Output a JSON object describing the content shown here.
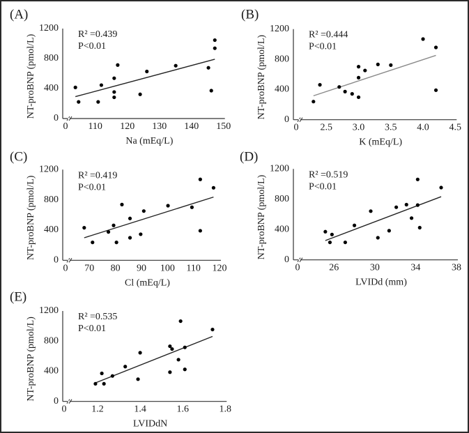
{
  "figure": {
    "panels_count": 5
  },
  "chart_data": [
    {
      "id": "A",
      "type": "scatter",
      "panel_label": "(A)",
      "title": "",
      "xlabel": "Na (mEq/L)",
      "ylabel": "NT-proBNP (pmol/L)",
      "x_break": true,
      "xticks": [
        0,
        110,
        120,
        130,
        140,
        150
      ],
      "xtick_labels": [
        "0",
        "110",
        "120",
        "130",
        "140",
        "150"
      ],
      "xlim": [
        110,
        150
      ],
      "yticks": [
        0,
        400,
        800,
        1200
      ],
      "ylim": [
        0,
        1200
      ],
      "annotation": {
        "r2": "R² =0.439",
        "p": "P<0.01"
      },
      "points": [
        [
          103.8,
          415
        ],
        [
          104.8,
          222
        ],
        [
          110.9,
          222
        ],
        [
          111.9,
          446
        ],
        [
          115.9,
          283
        ],
        [
          115.9,
          354
        ],
        [
          115.9,
          538
        ],
        [
          117.0,
          714
        ],
        [
          124.0,
          323
        ],
        [
          126.1,
          628
        ],
        [
          135.1,
          705
        ],
        [
          145.3,
          677
        ],
        [
          146.2,
          372
        ],
        [
          147.3,
          938
        ],
        [
          147.3,
          1046
        ]
      ],
      "fit_line": [
        [
          103.8,
          292
        ],
        [
          147.3,
          791
        ]
      ],
      "line_color": "#222222"
    },
    {
      "id": "B",
      "type": "scatter",
      "panel_label": "(B)",
      "title": "",
      "xlabel": "K (mEq/L)",
      "ylabel": "NT-proBNP (pmol/L)",
      "x_break": true,
      "xticks": [
        0,
        2.5,
        3.0,
        3.5,
        4.0,
        4.5
      ],
      "xtick_labels": [
        "0",
        "2.5",
        "3.0",
        "3.5",
        "4.0",
        "4.5"
      ],
      "xlim": [
        2.5,
        4.5
      ],
      "yticks": [
        0,
        400,
        800,
        1200
      ],
      "ylim": [
        0,
        1200
      ],
      "annotation": {
        "r2": "R² =0.444",
        "p": "P<0.01"
      },
      "points": [
        [
          2.3,
          240
        ],
        [
          2.4,
          462
        ],
        [
          2.7,
          434
        ],
        [
          2.79,
          372
        ],
        [
          2.9,
          342
        ],
        [
          3.0,
          298
        ],
        [
          3.0,
          557
        ],
        [
          3.0,
          702
        ],
        [
          3.1,
          652
        ],
        [
          3.3,
          732
        ],
        [
          3.5,
          723
        ],
        [
          4.0,
          1068
        ],
        [
          4.2,
          957
        ],
        [
          4.2,
          391
        ]
      ],
      "fit_line": [
        [
          2.3,
          317
        ],
        [
          4.2,
          852
        ]
      ],
      "line_color": "#8a8a8a"
    },
    {
      "id": "C",
      "type": "scatter",
      "panel_label": "(C)",
      "title": "",
      "xlabel": "Cl (mEq/L)",
      "ylabel": "NT-proBNP (pmol/L)",
      "x_break": true,
      "xticks": [
        0,
        70,
        80,
        90,
        100,
        110,
        120
      ],
      "xtick_labels": [
        "0",
        "70",
        "80",
        "90",
        "100",
        "110",
        "120"
      ],
      "xlim": [
        70,
        120
      ],
      "yticks": [
        0,
        400,
        800,
        1200
      ],
      "ylim": [
        0,
        1200
      ],
      "annotation": {
        "r2": "R² =0.419",
        "p": "P<0.01"
      },
      "points": [
        [
          68.0,
          431
        ],
        [
          71.2,
          237
        ],
        [
          77.3,
          375
        ],
        [
          79.3,
          462
        ],
        [
          80.4,
          237
        ],
        [
          82.5,
          738
        ],
        [
          85.6,
          554
        ],
        [
          85.6,
          298
        ],
        [
          89.7,
          345
        ],
        [
          90.9,
          652
        ],
        [
          100.2,
          723
        ],
        [
          109.4,
          702
        ],
        [
          112.6,
          1071
        ],
        [
          112.6,
          391
        ],
        [
          117.7,
          960
        ]
      ],
      "fit_line": [
        [
          68.0,
          298
        ],
        [
          117.7,
          837
        ]
      ],
      "line_color": "#222222"
    },
    {
      "id": "D",
      "type": "scatter",
      "panel_label": "(D)",
      "title": "",
      "xlabel": "LVIDd (mm)",
      "ylabel": "NT-proBNP (pmol/L)",
      "x_break": true,
      "xticks": [
        0,
        26,
        30,
        34,
        38
      ],
      "xtick_labels": [
        "0",
        "26",
        "30",
        "34",
        "38"
      ],
      "xlim": [
        26,
        38
      ],
      "yticks": [
        0,
        400,
        800,
        1200
      ],
      "ylim": [
        0,
        1200
      ],
      "annotation": {
        "r2": "R² =0.519",
        "p": "P<0.01"
      },
      "points": [
        [
          25.15,
          372
        ],
        [
          25.8,
          335
        ],
        [
          25.6,
          231
        ],
        [
          27.1,
          231
        ],
        [
          28.0,
          455
        ],
        [
          29.6,
          643
        ],
        [
          30.3,
          292
        ],
        [
          31.4,
          385
        ],
        [
          32.1,
          695
        ],
        [
          33.1,
          729
        ],
        [
          33.6,
          551
        ],
        [
          34.2,
          723
        ],
        [
          34.2,
          1062
        ],
        [
          34.4,
          425
        ],
        [
          36.5,
          954
        ]
      ],
      "fit_line": [
        [
          25.15,
          255
        ],
        [
          36.5,
          834
        ]
      ],
      "line_color": "#222222"
    },
    {
      "id": "E",
      "type": "scatter",
      "panel_label": "(E)",
      "title": "",
      "xlabel": "LVIDdN",
      "ylabel": "NT-proBNP (pmol/L)",
      "x_break": true,
      "xticks": [
        0,
        1.2,
        1.4,
        1.6,
        1.8
      ],
      "xtick_labels": [
        "0",
        "1.2",
        "1.4",
        "1.6",
        "1.8"
      ],
      "xlim": [
        1.2,
        1.8
      ],
      "yticks": [
        0,
        400,
        800,
        1200
      ],
      "ylim": [
        0,
        1200
      ],
      "annotation": {
        "r2": "R² =0.535",
        "p": "P<0.01"
      },
      "points": [
        [
          1.19,
          234
        ],
        [
          1.22,
          372
        ],
        [
          1.23,
          234
        ],
        [
          1.27,
          338
        ],
        [
          1.33,
          462
        ],
        [
          1.39,
          295
        ],
        [
          1.4,
          646
        ],
        [
          1.54,
          732
        ],
        [
          1.55,
          695
        ],
        [
          1.54,
          388
        ],
        [
          1.58,
          554
        ],
        [
          1.59,
          1065
        ],
        [
          1.61,
          717
        ],
        [
          1.61,
          425
        ],
        [
          1.74,
          954
        ]
      ],
      "fit_line": [
        [
          1.19,
          246
        ],
        [
          1.74,
          862
        ]
      ],
      "line_color": "#222222"
    }
  ]
}
